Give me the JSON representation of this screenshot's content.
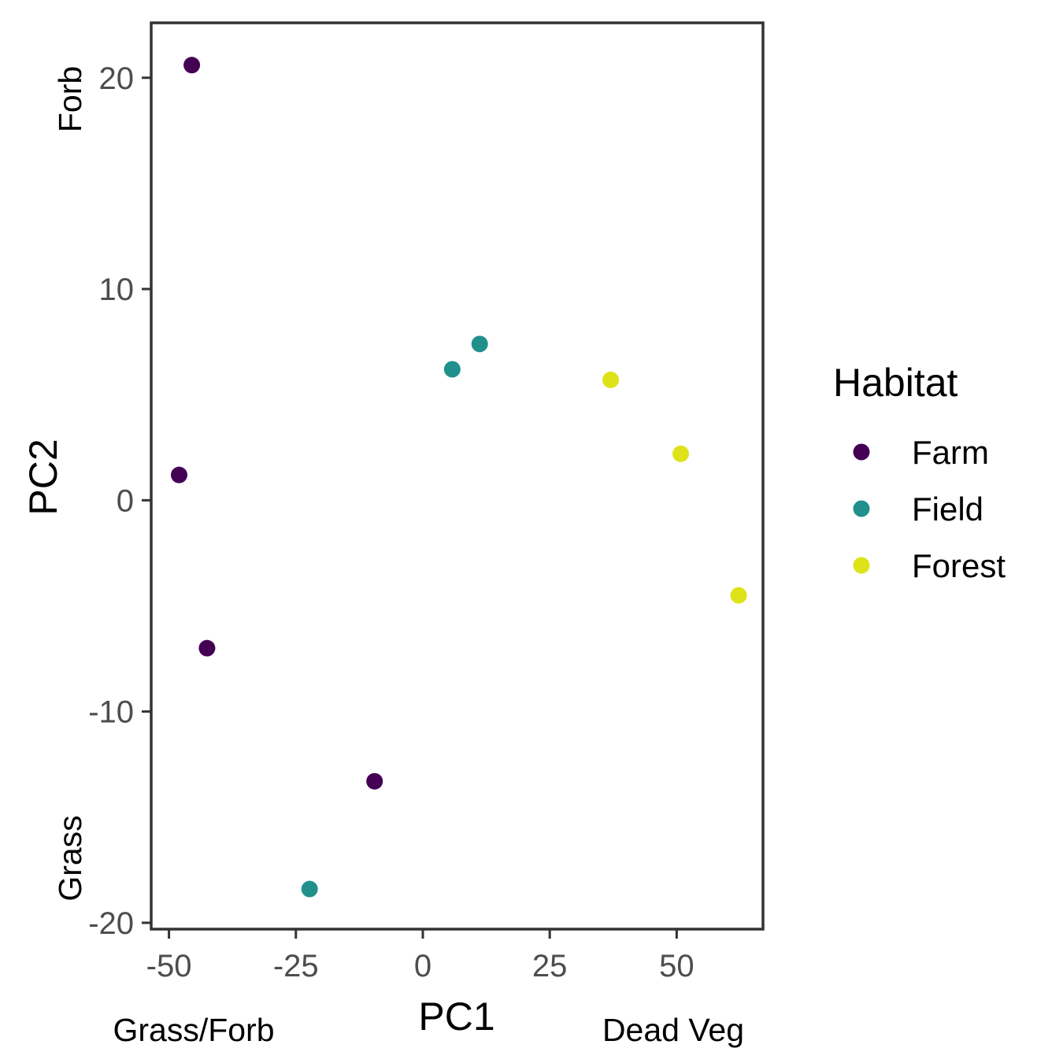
{
  "chart_data": {
    "type": "scatter",
    "xlabel": "PC1",
    "ylabel": "PC2",
    "x_annotations": {
      "left": "Grass/Forb",
      "right": "Dead Veg"
    },
    "y_annotations": {
      "top": "Forb",
      "bottom": "Grass"
    },
    "xlim": [
      -53.5,
      67
    ],
    "ylim": [
      -20.3,
      22.6
    ],
    "x_ticks": [
      -50,
      -25,
      0,
      25,
      50
    ],
    "x_tick_labels": [
      "-50",
      "-25",
      "0",
      "25",
      "50"
    ],
    "y_ticks": [
      -20,
      -10,
      0,
      10,
      20
    ],
    "y_tick_labels": [
      "-20",
      "-10",
      "0",
      "10",
      "20"
    ],
    "grid": false,
    "legend": {
      "title": "Habitat",
      "placement": "right"
    },
    "series": [
      {
        "name": "Farm",
        "color": "#440154",
        "points": [
          [
            -45.5,
            20.6
          ],
          [
            -48,
            1.2
          ],
          [
            -42.5,
            -7.0
          ],
          [
            -9.5,
            -13.3
          ]
        ]
      },
      {
        "name": "Field",
        "color": "#21908C",
        "points": [
          [
            5.8,
            6.2
          ],
          [
            11.2,
            7.4
          ],
          [
            -22.3,
            -18.4
          ]
        ]
      },
      {
        "name": "Forest",
        "color": "#DDE318",
        "points": [
          [
            37,
            5.7
          ],
          [
            50.8,
            2.2
          ],
          [
            62.2,
            -4.5
          ]
        ]
      }
    ]
  }
}
